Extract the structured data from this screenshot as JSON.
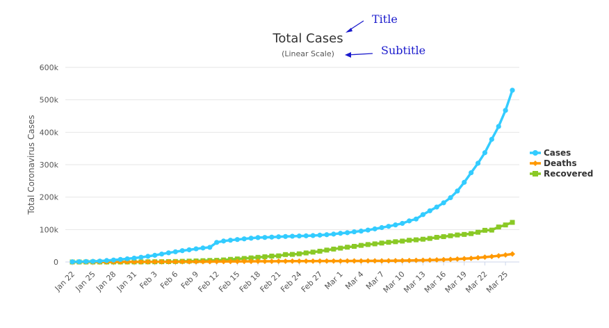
{
  "annotations": {
    "title_label": "Title",
    "subtitle_label": "Subtitle"
  },
  "chart_data": {
    "type": "line",
    "title": "Total Cases",
    "subtitle": "(Linear Scale)",
    "xlabel": "",
    "ylabel": "Total Coronavirus Cases",
    "ylim": [
      0,
      600000
    ],
    "yticks": [
      0,
      100000,
      200000,
      300000,
      400000,
      500000,
      600000
    ],
    "ytick_labels": [
      "0",
      "100k",
      "200k",
      "300k",
      "400k",
      "500k",
      "600k"
    ],
    "grid": true,
    "legend_position": "right",
    "x_tick_labels": [
      "Jan 22",
      "Jan 25",
      "Jan 28",
      "Jan 31",
      "Feb 3",
      "Feb 6",
      "Feb 9",
      "Feb 12",
      "Feb 15",
      "Feb 18",
      "Feb 21",
      "Feb 24",
      "Feb 27",
      "Mar 1",
      "Mar 4",
      "Mar 7",
      "Mar 10",
      "Mar 13",
      "Mar 16",
      "Mar 19",
      "Mar 22",
      "Mar 25"
    ],
    "tick_every": 3,
    "series": [
      {
        "name": "Cases",
        "color": "#33ccff",
        "marker": "circle",
        "values": [
          580,
          845,
          1320,
          2015,
          2800,
          4580,
          6065,
          7820,
          9830,
          11950,
          14550,
          17390,
          20630,
          24550,
          28280,
          31480,
          34880,
          37560,
          40550,
          43100,
          45170,
          60380,
          64550,
          67100,
          69260,
          71330,
          73330,
          75200,
          75700,
          76680,
          77670,
          78640,
          79410,
          80060,
          80590,
          81400,
          82740,
          84120,
          86010,
          88370,
          90310,
          93090,
          95320,
          98420,
          102050,
          106100,
          109900,
          114300,
          119100,
          126700,
          132500,
          146100,
          157900,
          169400,
          182400,
          198200,
          218800,
          245600,
          275200,
          304500,
          337000,
          378200,
          418000,
          467500,
          529600
        ]
      },
      {
        "name": "Deaths",
        "color": "#ff9900",
        "marker": "diamond",
        "values": [
          17,
          25,
          41,
          56,
          80,
          106,
          132,
          170,
          213,
          259,
          304,
          362,
          426,
          492,
          565,
          638,
          724,
          813,
          910,
          1018,
          1115,
          1261,
          1383,
          1526,
          1669,
          1775,
          1873,
          2009,
          2126,
          2247,
          2360,
          2460,
          2618,
          2699,
          2763,
          2800,
          2858,
          2923,
          2977,
          3050,
          3117,
          3202,
          3285,
          3387,
          3494,
          3599,
          3827,
          4025,
          4296,
          4628,
          4981,
          5428,
          5833,
          6520,
          7166,
          7989,
          8980,
          10057,
          11367,
          13039,
          14908,
          16810,
          19131,
          21700,
          24600
        ]
      },
      {
        "name": "Recovered",
        "color": "#8ac926",
        "marker": "square",
        "values": [
          28,
          30,
          36,
          39,
          52,
          61,
          107,
          126,
          143,
          222,
          284,
          472,
          623,
          852,
          1124,
          1487,
          2011,
          2616,
          3244,
          3946,
          4683,
          5150,
          6295,
          8058,
          9395,
          10865,
          12583,
          14352,
          16121,
          18177,
          18890,
          22886,
          23394,
          25227,
          27905,
          30384,
          33277,
          36711,
          39782,
          42716,
          45602,
          48228,
          51170,
          53796,
          55865,
          58358,
          60694,
          62494,
          64404,
          67003,
          68324,
          70251,
          72624,
          76034,
          78088,
          80840,
          83312,
          84975,
          87420,
          91692,
          97704,
          98334,
          107890,
          114217,
          122150
        ]
      }
    ]
  }
}
